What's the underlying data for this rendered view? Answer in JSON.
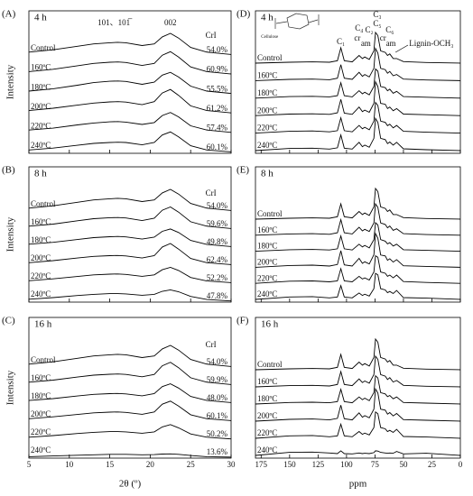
{
  "chart_data": [
    {
      "type": "line",
      "panel": "(A)",
      "subtitle": "4 h",
      "ylabel": "Intensity",
      "color": "#000000",
      "tick_labels": false,
      "annotations": [
        "101、101̅",
        "002",
        "CrI"
      ],
      "x": [
        5,
        8,
        11,
        13,
        15,
        16,
        17,
        19,
        20.5,
        21.5,
        22.5,
        23.5,
        25,
        27,
        30
      ],
      "xlim": [
        5,
        30
      ],
      "xticks": [
        5,
        10,
        15,
        20,
        25,
        30
      ],
      "series": [
        {
          "name": "Control",
          "crystallinity_index": "54.0%",
          "values": [
            2,
            3,
            4.5,
            5.5,
            6,
            6.2,
            6,
            4.8,
            5.5,
            8.5,
            10,
            8,
            4,
            2,
            1
          ]
        },
        {
          "name": "160ºC",
          "crystallinity_index": "60.9%",
          "values": [
            2,
            3,
            4.5,
            5.5,
            6,
            6.1,
            5.9,
            4.6,
            5.5,
            9,
            10.5,
            8.2,
            4,
            2,
            1
          ]
        },
        {
          "name": "180ºC",
          "crystallinity_index": "55.5%",
          "values": [
            2,
            3,
            4.5,
            5.6,
            6.2,
            6.3,
            6.1,
            4.9,
            5.8,
            8.8,
            10,
            8,
            4.1,
            2,
            1
          ]
        },
        {
          "name": "200ºC",
          "crystallinity_index": "61.2%",
          "values": [
            2,
            3,
            4.3,
            5.2,
            5.7,
            5.8,
            5.6,
            4.5,
            5.8,
            9.5,
            11,
            8.5,
            4,
            2,
            1
          ]
        },
        {
          "name": "220ºC",
          "crystallinity_index": "57.4%",
          "values": [
            2,
            2.8,
            4.2,
            5,
            5.5,
            5.6,
            5.4,
            4.4,
            5.2,
            8.2,
            9.5,
            7.6,
            3.8,
            2,
            1
          ]
        },
        {
          "name": "240ºC",
          "crystallinity_index": "60.1%",
          "values": [
            1.8,
            2.6,
            3.8,
            4.6,
            5,
            5.1,
            5,
            4,
            5,
            8.2,
            9.5,
            7.4,
            3.6,
            1.8,
            1
          ]
        }
      ]
    },
    {
      "type": "line",
      "panel": "(B)",
      "subtitle": "8 h",
      "ylabel": "Intensity",
      "color": "#000000",
      "tick_labels": false,
      "annotations": [
        "CrI"
      ],
      "x": [
        5,
        8,
        11,
        13,
        15,
        16,
        17,
        19,
        20.5,
        21.5,
        22.5,
        23.5,
        25,
        27,
        30
      ],
      "xlim": [
        5,
        30
      ],
      "xticks": [
        5,
        10,
        15,
        20,
        25,
        30
      ],
      "series": [
        {
          "name": "Control",
          "crystallinity_index": "54.0%",
          "values": [
            2,
            3,
            4.5,
            5.5,
            6,
            6.2,
            6,
            4.8,
            5.5,
            8.5,
            10,
            8,
            4,
            2,
            1
          ]
        },
        {
          "name": "160ºC",
          "crystallinity_index": "59.6%",
          "values": [
            2,
            2.9,
            4.3,
            5.2,
            5.6,
            5.7,
            5.5,
            4.4,
            5.4,
            8.8,
            10.2,
            8,
            3.9,
            2,
            1
          ]
        },
        {
          "name": "180ºC",
          "crystallinity_index": "49.8%",
          "values": [
            2,
            2.8,
            4,
            4.8,
            5.2,
            5.3,
            5.1,
            4.2,
            5,
            7.5,
            8.5,
            7,
            3.6,
            1.9,
            1
          ]
        },
        {
          "name": "200ºC",
          "crystallinity_index": "62.4%",
          "values": [
            1.8,
            2.7,
            3.8,
            4.5,
            4.8,
            4.9,
            4.7,
            3.8,
            4.8,
            8.5,
            10,
            7.6,
            3.6,
            1.8,
            1
          ]
        },
        {
          "name": "220ºC",
          "crystallinity_index": "52.2%",
          "values": [
            1.8,
            2.6,
            3.6,
            4.3,
            4.6,
            4.7,
            4.5,
            3.7,
            4.3,
            6.5,
            7.5,
            6.2,
            3.2,
            1.7,
            1
          ]
        },
        {
          "name": "240ºC",
          "crystallinity_index": "47.8%",
          "values": [
            1.6,
            2.3,
            3.2,
            3.7,
            4,
            4,
            3.9,
            3.3,
            3.7,
            5,
            5.6,
            4.8,
            2.8,
            1.5,
            0.9
          ]
        }
      ]
    },
    {
      "type": "line",
      "panel": "(C)",
      "subtitle": "16 h",
      "ylabel": "Intensity",
      "xlabel": "2θ (º)",
      "color": "#000000",
      "tick_labels": true,
      "annotations": [
        "CrI"
      ],
      "x": [
        5,
        8,
        11,
        13,
        15,
        16,
        17,
        19,
        20.5,
        21.5,
        22.5,
        23.5,
        25,
        27,
        30
      ],
      "xlim": [
        5,
        30
      ],
      "xticks": [
        5,
        10,
        15,
        20,
        25,
        30
      ],
      "series": [
        {
          "name": "Control",
          "crystallinity_index": "54.0%",
          "values": [
            2,
            3,
            4.5,
            5.5,
            6,
            6.2,
            6,
            4.8,
            5.5,
            8.5,
            10,
            8,
            4,
            2,
            1
          ]
        },
        {
          "name": "160ºC",
          "crystallinity_index": "59.9%",
          "values": [
            2,
            2.9,
            4.2,
            5,
            5.4,
            5.5,
            5.3,
            4.3,
            5.3,
            9,
            10.5,
            8.2,
            3.9,
            2,
            1
          ]
        },
        {
          "name": "180ºC",
          "crystallinity_index": "48.0%",
          "values": [
            1.9,
            2.7,
            3.8,
            4.5,
            4.8,
            4.9,
            4.7,
            3.9,
            4.8,
            7.8,
            9,
            7.2,
            3.6,
            1.9,
            1
          ]
        },
        {
          "name": "200ºC",
          "crystallinity_index": "60.1%",
          "values": [
            1.8,
            2.6,
            3.6,
            4.3,
            4.6,
            4.7,
            4.5,
            3.7,
            4.7,
            8,
            9.3,
            7.2,
            3.5,
            1.8,
            1
          ]
        },
        {
          "name": "220ºC",
          "crystallinity_index": "50.2%",
          "values": [
            1.6,
            2.3,
            3.2,
            3.7,
            4,
            4,
            3.9,
            3.3,
            3.9,
            6,
            7,
            5.6,
            3,
            1.6,
            0.9
          ]
        },
        {
          "name": "240ºC",
          "crystallinity_index": "13.6%",
          "values": [
            1,
            1.3,
            1.6,
            1.8,
            2,
            2,
            2,
            1.8,
            1.9,
            2.1,
            2.2,
            2,
            1.5,
            1,
            0.8
          ]
        }
      ]
    },
    {
      "type": "line",
      "panel": "(D)",
      "subtitle": "4 h",
      "color": "#000000",
      "tick_labels": false,
      "annotations": [
        "C₁",
        "C₄",
        "cr",
        "am",
        "C₂",
        "C₃",
        "C₅",
        "cr",
        "am",
        "C₆",
        "Lignin-OCH₃",
        "Cellulose"
      ],
      "x": [
        195,
        150,
        130,
        115,
        108,
        105,
        102,
        95,
        89,
        86,
        84,
        80,
        76,
        74.5,
        72.5,
        70,
        66,
        64,
        62,
        59,
        56,
        50,
        30,
        0
      ],
      "xlim": [
        180,
        0
      ],
      "xticks": [
        175,
        150,
        125,
        100,
        75,
        50,
        25,
        0
      ],
      "series": [
        {
          "name": "Control",
          "values": [
            0,
            0.3,
            0.4,
            0.3,
            0.8,
            5,
            0.8,
            0.4,
            2.5,
            1.5,
            2,
            1.2,
            4,
            10,
            9,
            4,
            3.5,
            2.5,
            3,
            1.5,
            1.5,
            0.5,
            0.2,
            0
          ]
        },
        {
          "name": "160ºC",
          "values": [
            0,
            0.4,
            0.5,
            0.3,
            0.8,
            5.2,
            0.8,
            0.4,
            2.7,
            1.4,
            2,
            1.2,
            4,
            10.5,
            9,
            4,
            3.6,
            2.4,
            3,
            1.6,
            2,
            0.5,
            0.2,
            0
          ]
        },
        {
          "name": "180ºC",
          "values": [
            0,
            0.5,
            0.6,
            0.4,
            0.8,
            5,
            0.8,
            0.4,
            2.4,
            1.4,
            1.9,
            1.1,
            3.8,
            9.5,
            8.8,
            3.8,
            3.4,
            2.4,
            2.9,
            1.6,
            2.2,
            0.5,
            0.3,
            0
          ]
        },
        {
          "name": "200ºC",
          "values": [
            0,
            0.5,
            0.6,
            0.4,
            0.9,
            5.3,
            0.8,
            0.4,
            2.8,
            1.3,
            1.8,
            1.1,
            4,
            11,
            9.5,
            4,
            3.7,
            2.3,
            2.8,
            1.6,
            2.3,
            0.5,
            0.3,
            0
          ]
        },
        {
          "name": "220ºC",
          "values": [
            0,
            0.6,
            0.7,
            0.4,
            0.8,
            5,
            0.8,
            0.4,
            2.5,
            1.4,
            1.9,
            1.1,
            3.9,
            10,
            9,
            3.9,
            3.5,
            2.4,
            2.9,
            1.7,
            2.5,
            0.6,
            0.3,
            0
          ]
        },
        {
          "name": "240ºC",
          "values": [
            0,
            0.7,
            0.8,
            0.5,
            0.9,
            5.1,
            0.8,
            0.5,
            2.7,
            1.3,
            1.8,
            1.1,
            4,
            10.5,
            9.2,
            4,
            3.6,
            2.3,
            2.8,
            1.8,
            2.7,
            0.6,
            0.3,
            0
          ]
        }
      ]
    },
    {
      "type": "line",
      "panel": "(E)",
      "subtitle": "8 h",
      "color": "#000000",
      "tick_labels": false,
      "annotations": [],
      "x": [
        195,
        150,
        130,
        115,
        108,
        105,
        102,
        95,
        89,
        86,
        84,
        80,
        76,
        74.5,
        72.5,
        70,
        66,
        64,
        62,
        59,
        56,
        50,
        30,
        0
      ],
      "xlim": [
        180,
        0
      ],
      "xticks": [
        175,
        150,
        125,
        100,
        75,
        50,
        25,
        0
      ],
      "series": [
        {
          "name": "Control",
          "values": [
            0,
            0.3,
            0.4,
            0.3,
            0.8,
            5,
            0.8,
            0.4,
            2.5,
            1.5,
            2,
            1.2,
            4,
            10,
            9,
            4,
            3.5,
            2.5,
            3,
            1.5,
            1.5,
            0.5,
            0.2,
            0
          ]
        },
        {
          "name": "160ºC",
          "values": [
            0,
            0.4,
            0.5,
            0.3,
            0.8,
            5.1,
            0.8,
            0.4,
            2.6,
            1.4,
            1.9,
            1.2,
            4,
            10.2,
            9.1,
            4,
            3.5,
            2.4,
            3,
            1.6,
            2.1,
            0.5,
            0.2,
            0
          ]
        },
        {
          "name": "180ºC",
          "values": [
            0,
            0.5,
            0.6,
            0.4,
            0.8,
            5,
            0.8,
            0.4,
            2.3,
            1.4,
            1.9,
            1.1,
            3.8,
            9.3,
            8.6,
            3.8,
            3.3,
            2.4,
            2.8,
            1.7,
            2.3,
            0.5,
            0.3,
            0
          ]
        },
        {
          "name": "200ºC",
          "values": [
            0,
            0.6,
            0.7,
            0.4,
            0.9,
            5.4,
            0.8,
            0.4,
            2.9,
            1.3,
            1.8,
            1.1,
            4.1,
            11,
            9.5,
            4,
            3.7,
            2.3,
            2.8,
            1.7,
            2.5,
            0.5,
            0.3,
            0
          ]
        },
        {
          "name": "220ºC",
          "values": [
            0,
            0.7,
            0.8,
            0.5,
            0.8,
            4.8,
            0.8,
            0.5,
            2.3,
            1.4,
            1.8,
            1.1,
            3.7,
            9,
            8.5,
            3.7,
            3.3,
            2.3,
            2.7,
            1.8,
            2.7,
            0.6,
            0.3,
            0
          ]
        },
        {
          "name": "240ºC",
          "values": [
            0,
            0.8,
            0.9,
            0.5,
            0.8,
            4.5,
            0.8,
            0.5,
            2.1,
            1.3,
            1.7,
            1.1,
            3.5,
            8.5,
            8,
            3.5,
            3.1,
            2.2,
            2.6,
            1.9,
            2.9,
            0.6,
            0.4,
            0
          ]
        }
      ]
    },
    {
      "type": "line",
      "panel": "(F)",
      "subtitle": "16 h",
      "xlabel": "ppm",
      "color": "#000000",
      "tick_labels": true,
      "annotations": [],
      "x": [
        195,
        150,
        130,
        115,
        108,
        105,
        102,
        95,
        89,
        86,
        84,
        80,
        76,
        74.5,
        72.5,
        70,
        66,
        64,
        62,
        59,
        56,
        50,
        30,
        0
      ],
      "xlim": [
        180,
        0
      ],
      "xticks": [
        175,
        150,
        125,
        100,
        75,
        50,
        25,
        0
      ],
      "series": [
        {
          "name": "Control",
          "values": [
            0,
            0.3,
            0.4,
            0.3,
            0.8,
            5,
            0.8,
            0.4,
            2.5,
            1.5,
            2,
            1.2,
            4,
            10,
            9,
            4,
            3.5,
            2.5,
            3,
            1.5,
            1.5,
            0.5,
            0.2,
            0
          ]
        },
        {
          "name": "160ºC",
          "values": [
            0,
            0.4,
            0.5,
            0.3,
            0.8,
            5,
            0.8,
            0.4,
            2.6,
            1.4,
            1.9,
            1.2,
            4,
            10,
            9,
            4,
            3.5,
            2.4,
            3,
            1.6,
            2.1,
            0.5,
            0.2,
            0
          ]
        },
        {
          "name": "180ºC",
          "values": [
            0,
            0.5,
            0.6,
            0.4,
            0.8,
            4.8,
            0.8,
            0.4,
            2.3,
            1.4,
            1.9,
            1.1,
            3.7,
            9.2,
            8.5,
            3.7,
            3.3,
            2.4,
            2.8,
            1.7,
            2.3,
            0.5,
            0.3,
            0
          ]
        },
        {
          "name": "200ºC",
          "values": [
            0,
            0.6,
            0.7,
            0.4,
            0.9,
            5.2,
            0.8,
            0.4,
            2.7,
            1.3,
            1.8,
            1.1,
            3.9,
            10.5,
            9.2,
            3.9,
            3.6,
            2.3,
            2.8,
            1.7,
            2.5,
            0.5,
            0.3,
            0
          ]
        },
        {
          "name": "220ºC",
          "values": [
            0,
            0.8,
            0.9,
            0.5,
            0.8,
            4.6,
            0.8,
            0.5,
            2.2,
            1.3,
            1.7,
            1.1,
            3.5,
            8.6,
            8,
            3.5,
            3.1,
            2.2,
            2.6,
            1.9,
            2.9,
            0.6,
            0.4,
            0
          ]
        },
        {
          "name": "240ºC",
          "values": [
            0,
            1,
            1.1,
            0.8,
            0.6,
            1.5,
            0.6,
            0.5,
            0.8,
            0.6,
            0.7,
            0.6,
            0.9,
            1.5,
            1.4,
            1,
            0.8,
            0.7,
            0.8,
            0.7,
            1.3,
            0.5,
            0.7,
            0
          ]
        }
      ]
    }
  ]
}
